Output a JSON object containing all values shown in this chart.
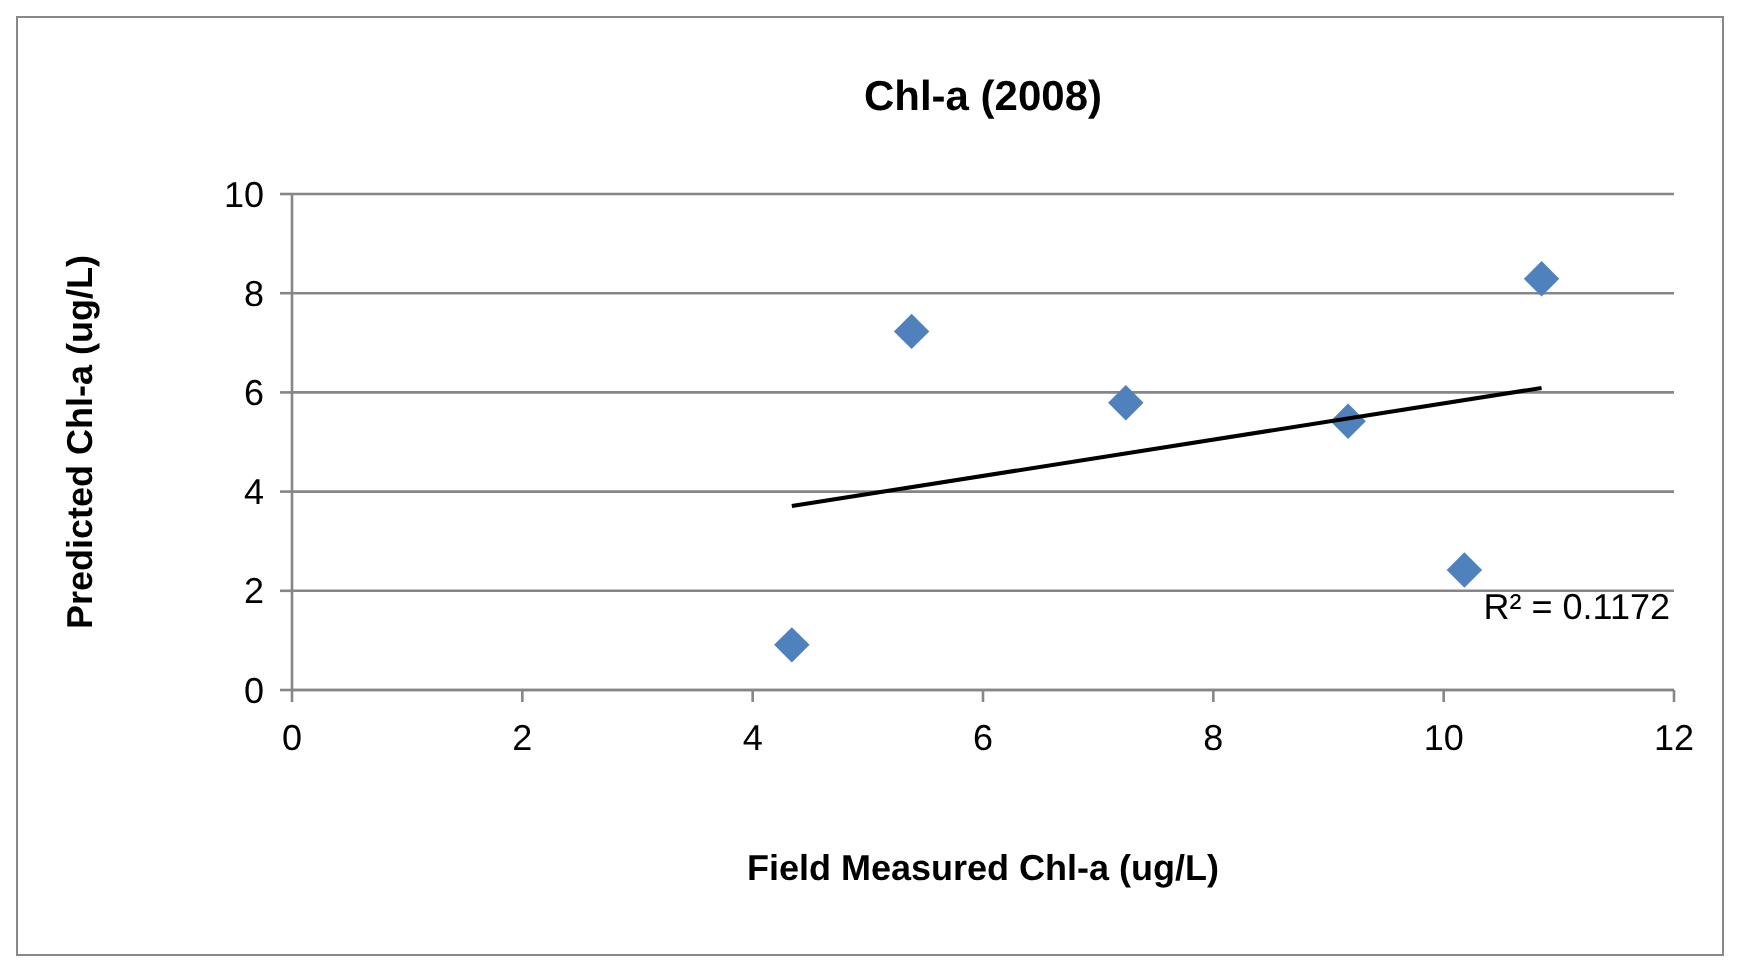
{
  "chart_data": {
    "type": "scatter",
    "title": "Chl-a (2008)",
    "xlabel": "Field Measured Chl-a (ug/L)",
    "ylabel": "Predicted Chl-a (ug/L)",
    "xlim": [
      0,
      12
    ],
    "xticks": [
      0,
      2,
      4,
      6,
      8,
      10,
      12
    ],
    "ylim": [
      0,
      10
    ],
    "yticks": [
      0,
      2,
      4,
      6,
      8,
      10
    ],
    "grid": "y",
    "marker": "diamond",
    "series": [
      {
        "color": "#4f81bd",
        "x": [
          4.34,
          5.38,
          7.24,
          9.17,
          10.18,
          10.85
        ],
        "values": [
          0.91,
          7.23,
          5.79,
          5.42,
          2.42,
          8.29
        ]
      },
      {
        "type": "line",
        "color": "#000000",
        "line_style": "solid",
        "marker": "none",
        "x": [
          4.34,
          10.85
        ],
        "values": [
          3.71,
          6.09
        ]
      }
    ],
    "annotations": [
      "R² = 0.1172"
    ]
  }
}
